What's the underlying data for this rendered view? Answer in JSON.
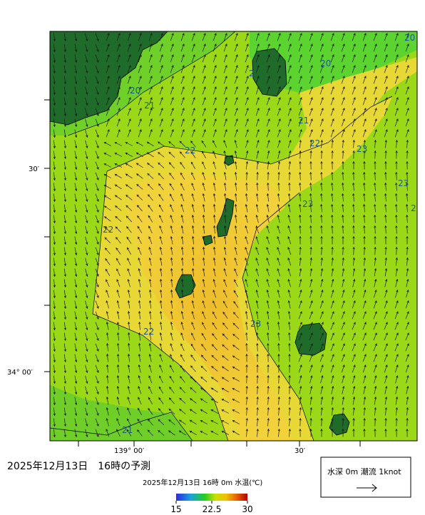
{
  "map": {
    "lat_ticks": [
      "30′",
      "34° 00′"
    ],
    "lon_ticks": [
      "139° 00′",
      "30′"
    ],
    "contour_labels": [
      20,
      20,
      2,
      20,
      21,
      21,
      22,
      22,
      23,
      23,
      23,
      2,
      22,
      23,
      22,
      21
    ]
  },
  "header": {
    "title": "2025年12月13日　16時の予測"
  },
  "legend": {
    "label": "水深 0m 潮流 1knot"
  },
  "colorbar": {
    "label": "2025年12月13日 16時 0m 水温(℃)",
    "ticks": [
      15,
      22.5,
      30
    ]
  }
}
